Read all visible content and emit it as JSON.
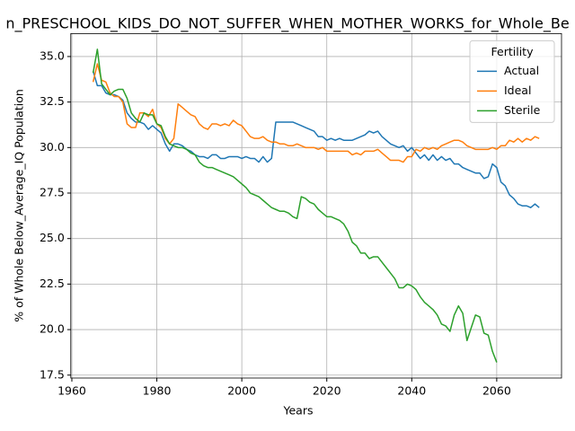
{
  "chart_data": {
    "type": "line",
    "title": "n_PRESCHOOL_KIDS_DO_NOT_SUFFER_WHEN_MOTHER_WORKS_for_Whole_Be",
    "xlabel": "Years",
    "ylabel": "% of Whole Below_Average_IQ Population",
    "x": [
      1965,
      1966,
      1967,
      1968,
      1969,
      1970,
      1971,
      1972,
      1973,
      1974,
      1975,
      1976,
      1977,
      1978,
      1979,
      1980,
      1981,
      1982,
      1983,
      1984,
      1985,
      1986,
      1987,
      1988,
      1989,
      1990,
      1991,
      1992,
      1993,
      1994,
      1995,
      1996,
      1997,
      1998,
      1999,
      2000,
      2001,
      2002,
      2003,
      2004,
      2005,
      2006,
      2007,
      2008,
      2009,
      2010,
      2011,
      2012,
      2013,
      2014,
      2015,
      2016,
      2017,
      2018,
      2019,
      2020,
      2021,
      2022,
      2023,
      2024,
      2025,
      2026,
      2027,
      2028,
      2029,
      2030,
      2031,
      2032,
      2033,
      2034,
      2035,
      2036,
      2037,
      2038,
      2039,
      2040,
      2041,
      2042,
      2043,
      2044,
      2045,
      2046,
      2047,
      2048,
      2049,
      2050,
      2051,
      2052,
      2053,
      2054,
      2055,
      2056,
      2057,
      2058,
      2059,
      2060,
      2061,
      2062,
      2063,
      2064,
      2065,
      2066,
      2067,
      2068,
      2069,
      2070
    ],
    "series": [
      {
        "name": "Actual",
        "color": "#1f77b4",
        "values": [
          34.2,
          33.4,
          33.4,
          33.0,
          32.9,
          32.9,
          32.8,
          32.6,
          31.9,
          31.6,
          31.4,
          31.4,
          31.3,
          31.0,
          31.2,
          31.0,
          30.8,
          30.2,
          29.8,
          30.2,
          30.2,
          30.1,
          29.9,
          29.8,
          29.6,
          29.5,
          29.5,
          29.4,
          29.6,
          29.6,
          29.4,
          29.4,
          29.5,
          29.5,
          29.5,
          29.4,
          29.5,
          29.4,
          29.4,
          29.2,
          29.5,
          29.2,
          29.4,
          31.4,
          31.4,
          31.4,
          31.4,
          31.4,
          31.3,
          31.2,
          31.1,
          31.0,
          30.9,
          30.6,
          30.6,
          30.4,
          30.5,
          30.4,
          30.5,
          30.4,
          30.4,
          30.4,
          30.5,
          30.6,
          30.7,
          30.9,
          30.8,
          30.9,
          30.6,
          30.4,
          30.2,
          30.1,
          30.0,
          30.1,
          29.8,
          30.0,
          29.7,
          29.4,
          29.6,
          29.3,
          29.6,
          29.3,
          29.5,
          29.3,
          29.4,
          29.1,
          29.1,
          28.9,
          28.8,
          28.7,
          28.6,
          28.6,
          28.3,
          28.4,
          29.1,
          28.9,
          28.1,
          27.9,
          27.4,
          27.2,
          26.9,
          26.8,
          26.8,
          26.7,
          26.9,
          26.7
        ]
      },
      {
        "name": "Ideal",
        "color": "#ff7f0e",
        "values": [
          33.6,
          34.6,
          33.7,
          33.6,
          33.0,
          32.8,
          32.8,
          32.5,
          31.3,
          31.1,
          31.1,
          31.9,
          31.9,
          31.7,
          32.1,
          31.3,
          31.1,
          30.5,
          30.2,
          30.5,
          32.4,
          32.2,
          32.0,
          31.8,
          31.7,
          31.3,
          31.1,
          31.0,
          31.3,
          31.3,
          31.2,
          31.3,
          31.2,
          31.5,
          31.3,
          31.2,
          30.9,
          30.6,
          30.5,
          30.5,
          30.6,
          30.4,
          30.3,
          30.3,
          30.2,
          30.2,
          30.1,
          30.1,
          30.2,
          30.1,
          30.0,
          30.0,
          30.0,
          29.9,
          30.0,
          29.8,
          29.8,
          29.8,
          29.8,
          29.8,
          29.8,
          29.6,
          29.7,
          29.6,
          29.8,
          29.8,
          29.8,
          29.9,
          29.7,
          29.5,
          29.3,
          29.3,
          29.3,
          29.2,
          29.5,
          29.5,
          29.9,
          29.8,
          30.0,
          29.9,
          30.0,
          29.9,
          30.1,
          30.2,
          30.3,
          30.4,
          30.4,
          30.3,
          30.1,
          30.0,
          29.9,
          29.9,
          29.9,
          29.9,
          30.0,
          29.9,
          30.1,
          30.1,
          30.4,
          30.3,
          30.5,
          30.3,
          30.5,
          30.4,
          30.6,
          30.5
        ]
      },
      {
        "name": "Sterile",
        "color": "#2ca02c",
        "values": [
          34.1,
          35.4,
          33.5,
          33.2,
          32.9,
          33.1,
          33.2,
          33.2,
          32.7,
          31.9,
          31.6,
          31.4,
          31.9,
          31.8,
          31.8,
          31.3,
          31.2,
          30.6,
          30.2,
          30.1,
          30.0,
          30.0,
          29.9,
          29.7,
          29.6,
          29.2,
          29.0,
          28.9,
          28.9,
          28.8,
          28.7,
          28.6,
          28.5,
          28.4,
          28.2,
          28.0,
          27.8,
          27.5,
          27.4,
          27.3,
          27.1,
          26.9,
          26.7,
          26.6,
          26.5,
          26.5,
          26.4,
          26.2,
          26.1,
          27.3,
          27.2,
          27.0,
          26.9,
          26.6,
          26.4,
          26.2,
          26.2,
          26.1,
          26.0,
          25.8,
          25.4,
          24.8,
          24.6,
          24.2,
          24.2,
          23.9,
          24.0,
          24.0,
          23.7,
          23.4,
          23.1,
          22.8,
          22.3,
          22.3,
          22.5,
          22.4,
          22.2,
          21.8,
          21.5,
          21.3,
          21.1,
          20.8,
          20.3,
          20.2,
          19.9,
          20.8,
          21.3,
          20.9,
          19.4,
          20.1,
          20.8,
          20.7,
          19.8,
          19.7,
          18.8,
          18.2,
          null,
          null,
          null,
          null,
          null,
          null,
          null,
          null,
          null,
          null
        ]
      }
    ],
    "xlim": [
      1959.75,
      2075.25
    ],
    "ylim": [
      17.34,
      36.26
    ],
    "xticks": [
      1960,
      1980,
      2000,
      2020,
      2040,
      2060
    ],
    "yticks": [
      {
        "value": 17.5,
        "label": "17.5"
      },
      {
        "value": 20,
        "label": "20.0"
      },
      {
        "value": 22.5,
        "label": "22.5"
      },
      {
        "value": 25,
        "label": "25.0"
      },
      {
        "value": 27.5,
        "label": "27.5"
      },
      {
        "value": 30,
        "label": "30.0"
      },
      {
        "value": 32.5,
        "label": "32.5"
      },
      {
        "value": 35,
        "label": "35.0"
      }
    ],
    "grid": true,
    "legend_title": "Fertility",
    "legend_loc": "upper right"
  }
}
